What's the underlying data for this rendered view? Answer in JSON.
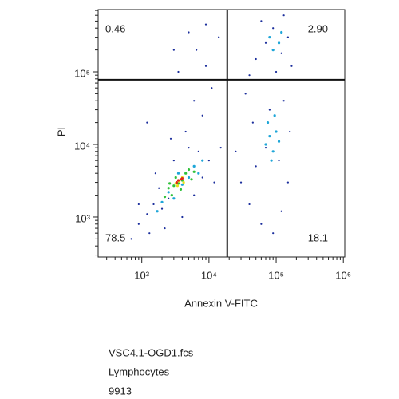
{
  "chart_data": {
    "type": "scatter",
    "xlabel": "Annexin V-FITC",
    "ylabel": "PI",
    "xscale": "log",
    "yscale": "log",
    "xlim": [
      224,
      1050000
    ],
    "ylim": [
      282,
      720000
    ],
    "xticks": [
      {
        "value": 1000,
        "label": "10³"
      },
      {
        "value": 10000,
        "label": "10⁴"
      },
      {
        "value": 100000,
        "label": "10⁵"
      },
      {
        "value": 1000000,
        "label": "10⁶"
      }
    ],
    "yticks": [
      {
        "value": 1000,
        "label": "10³"
      },
      {
        "value": 10000,
        "label": "10⁴"
      },
      {
        "value": 100000,
        "label": "10⁵"
      }
    ],
    "xminor_ticks": [
      300,
      400,
      500,
      600,
      700,
      800,
      900,
      2000,
      3000,
      4000,
      5000,
      6000,
      7000,
      8000,
      9000,
      20000,
      30000,
      40000,
      50000,
      60000,
      70000,
      80000,
      90000,
      200000,
      300000,
      400000,
      500000,
      600000,
      700000,
      800000,
      900000
    ],
    "yminor_ticks": [
      300,
      400,
      500,
      600,
      700,
      800,
      900,
      2000,
      3000,
      4000,
      5000,
      6000,
      7000,
      8000,
      9000,
      20000,
      30000,
      40000,
      50000,
      60000,
      70000,
      80000,
      90000,
      200000,
      300000,
      400000,
      500000,
      600000,
      700000
    ],
    "gates": {
      "x": 18700,
      "y": 78000
    },
    "annotations": [
      "0.46",
      "2.90",
      "78.5",
      "18.1"
    ],
    "series": [
      {
        "color": "#1a2d9c",
        "x": [
          1500,
          1200,
          2000,
          900,
          1800,
          2500,
          6000,
          8000,
          10000,
          7000,
          5000,
          3000,
          1600,
          2200,
          4000,
          12000,
          15000,
          2700,
          900,
          1300,
          700,
          4500,
          8000,
          6000,
          11000,
          3000,
          5000,
          9000,
          14000,
          1200,
          30000,
          40000,
          60000,
          90000,
          120000,
          150000,
          50000,
          70000,
          110000,
          160000,
          45000,
          80000,
          130000,
          25000,
          35000,
          50000,
          70000,
          90000,
          120000,
          150000,
          60000,
          100000,
          130000,
          40000,
          170000,
          9000,
          3500,
          6500
        ],
        "y": [
          1500,
          1100,
          1300,
          800,
          2500,
          1800,
          2000,
          3500,
          6000,
          8000,
          9000,
          6000,
          4000,
          700,
          1000,
          3000,
          9000,
          12000,
          1500,
          600,
          500,
          15000,
          25000,
          40000,
          60000,
          200000,
          350000,
          120000,
          300000,
          20000,
          3000,
          1500,
          800,
          600,
          1200,
          3000,
          5000,
          9000,
          6000,
          15000,
          20000,
          30000,
          40000,
          8000,
          50000,
          150000,
          250000,
          400000,
          180000,
          300000,
          500000,
          100000,
          600000,
          90000,
          120000,
          450000,
          100000,
          200000
        ]
      },
      {
        "color": "#1ea6d8",
        "x": [
          70000,
          80000,
          90000,
          100000,
          75000,
          110000,
          85000,
          95000,
          2000,
          2500,
          3000,
          4000,
          5000,
          6000,
          7000,
          1700,
          3500,
          8000,
          90000,
          110000,
          80000,
          120000
        ],
        "y": [
          10000,
          13000,
          8000,
          15000,
          20000,
          11000,
          6000,
          25000,
          1600,
          2200,
          1800,
          2800,
          3500,
          5000,
          4000,
          1200,
          4000,
          6000,
          200000,
          250000,
          300000,
          350000
        ]
      },
      {
        "color": "#2fc13a",
        "x": [
          2500,
          3000,
          3500,
          4000,
          2800,
          4500,
          5000,
          2200,
          3200,
          6000,
          3800,
          5500,
          2600
        ],
        "y": [
          2500,
          2700,
          2900,
          3200,
          2000,
          4000,
          4500,
          1900,
          3500,
          4200,
          2400,
          3300,
          2900
        ]
      },
      {
        "color": "#e8e21c",
        "x": [
          3200,
          3600,
          4000,
          3400,
          4200
        ],
        "y": [
          2900,
          3100,
          3500,
          2700,
          3000
        ]
      },
      {
        "color": "#e0281a",
        "x": [
          3500,
          3800,
          3300,
          4000
        ],
        "y": [
          3200,
          3300,
          3000,
          3400
        ]
      }
    ]
  },
  "footer": {
    "file": "VSC4.1-OGD1.fcs",
    "population": "Lymphocytes",
    "count": "9913"
  }
}
